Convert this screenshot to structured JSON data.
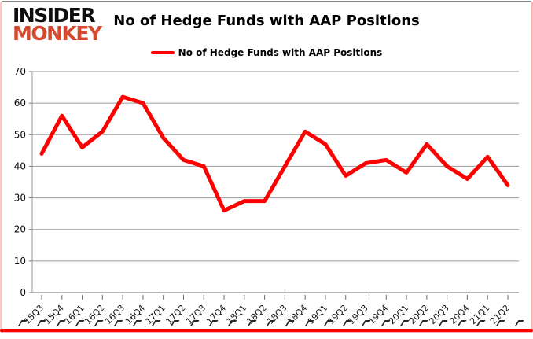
{
  "logo": {
    "line1": "INSIDER",
    "line2": "MONKEY",
    "accent_color": "#d6492f"
  },
  "header": {
    "title": "No of Hedge Funds with AAP Positions"
  },
  "legend": {
    "label": "No of Hedge Funds with AAP Positions",
    "color": "#fe0000"
  },
  "chart_data": {
    "type": "line",
    "title": "No of Hedge Funds with AAP Positions",
    "series_name": "No of Hedge Funds with AAP Positions",
    "categories": [
      "15Q3",
      "15Q4",
      "16Q1",
      "16Q2",
      "16Q3",
      "16Q4",
      "17Q1",
      "17Q2",
      "17Q3",
      "17Q4",
      "18Q1",
      "18Q2",
      "18Q3",
      "18Q4",
      "19Q1",
      "19Q2",
      "19Q3",
      "19Q4",
      "20Q1",
      "20Q2",
      "20Q3",
      "20Q4",
      "21Q1",
      "21Q2"
    ],
    "values": [
      44,
      56,
      46,
      51,
      62,
      60,
      49,
      42,
      40,
      26,
      29,
      29,
      40,
      51,
      47,
      37,
      41,
      42,
      38,
      47,
      40,
      36,
      43,
      34
    ],
    "ylim": [
      0,
      70
    ],
    "yticks": [
      0,
      10,
      20,
      30,
      40,
      50,
      60,
      70
    ],
    "grid": "horizontal",
    "legend_position": "top-center",
    "line_color": "#fe0000",
    "gridline_color": "#9a9a9a"
  },
  "footer": {
    "marks_count": 27
  }
}
